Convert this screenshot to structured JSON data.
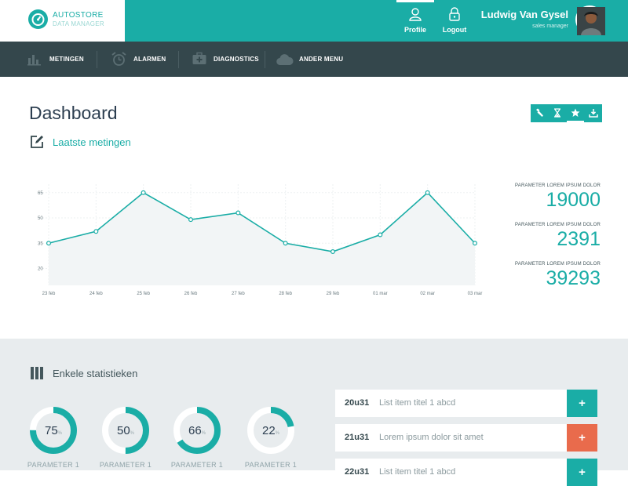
{
  "brand": {
    "name": "AUTOSTORE",
    "subtitle": "DATA MANAGER"
  },
  "topnav": [
    {
      "label": "Profile",
      "icon": "user-icon",
      "active": true
    },
    {
      "label": "Logout",
      "icon": "lock-icon",
      "active": false
    }
  ],
  "user": {
    "name": "Ludwig Van Gysel",
    "role": "sales manager"
  },
  "mainnav": [
    {
      "label": "METINGEN",
      "icon": "bar-chart-icon"
    },
    {
      "label": "ALARMEN",
      "icon": "alarm-clock-icon"
    },
    {
      "label": "DIAGNOSTICS",
      "icon": "medical-kit-icon"
    },
    {
      "label": "ANDER MENU",
      "icon": "cloud-icon"
    }
  ],
  "page": {
    "title": "Dashboard"
  },
  "toolbar": [
    {
      "icon": "wrench-icon"
    },
    {
      "icon": "hourglass-icon"
    },
    {
      "icon": "star-icon",
      "active": true
    },
    {
      "icon": "download-icon"
    }
  ],
  "section": {
    "title": "Laatste metingen",
    "icon": "edit-icon"
  },
  "chart_data": {
    "type": "area",
    "categories": [
      "23 feb",
      "24 feb",
      "25 feb",
      "26 feb",
      "27 feb",
      "28 feb",
      "29 feb",
      "01 mar",
      "02 mar",
      "03 mar"
    ],
    "series": [
      {
        "values": [
          35,
          42,
          65,
          49,
          53,
          35,
          30,
          40,
          65,
          35
        ]
      }
    ],
    "yticks": [
      20,
      35,
      50,
      65
    ],
    "ylim": [
      10,
      70
    ],
    "grid": true,
    "color": "#1aada6"
  },
  "stats": [
    {
      "label": "PARAMETER LOREM IPSUM DOLOR",
      "value": "19000"
    },
    {
      "label": "PARAMETER LOREM IPSUM DOLOR",
      "value": "2391"
    },
    {
      "label": "PARAMETER LOREM IPSUM DOLOR",
      "value": "39293"
    }
  ],
  "bottom": {
    "title": "Enkele statistieken",
    "icon": "columns-icon"
  },
  "donuts": [
    {
      "value": "75",
      "unit": "%",
      "percent": 75,
      "label": "PARAMETER 1"
    },
    {
      "value": "50",
      "unit": "%",
      "percent": 50,
      "label": "PARAMETER 1"
    },
    {
      "value": "66",
      "unit": "%",
      "percent": 66,
      "label": "PARAMETER 1"
    },
    {
      "value": "22",
      "unit": "%",
      "percent": 22,
      "label": "PARAMETER 1"
    }
  ],
  "list": [
    {
      "time": "20u31",
      "text": "List item titel 1 abcd",
      "button": "+",
      "color": "#1aada6"
    },
    {
      "time": "21u31",
      "text": "Lorem ipsum dolor sit amet",
      "button": "+",
      "color": "#e96b4c"
    },
    {
      "time": "22u31",
      "text": "List item titel 1 abcd",
      "button": "+",
      "color": "#1aada6"
    }
  ],
  "colors": {
    "accent": "#1aada6",
    "dark": "#34474c",
    "danger": "#e96b4c",
    "panel": "#e8ecee"
  }
}
